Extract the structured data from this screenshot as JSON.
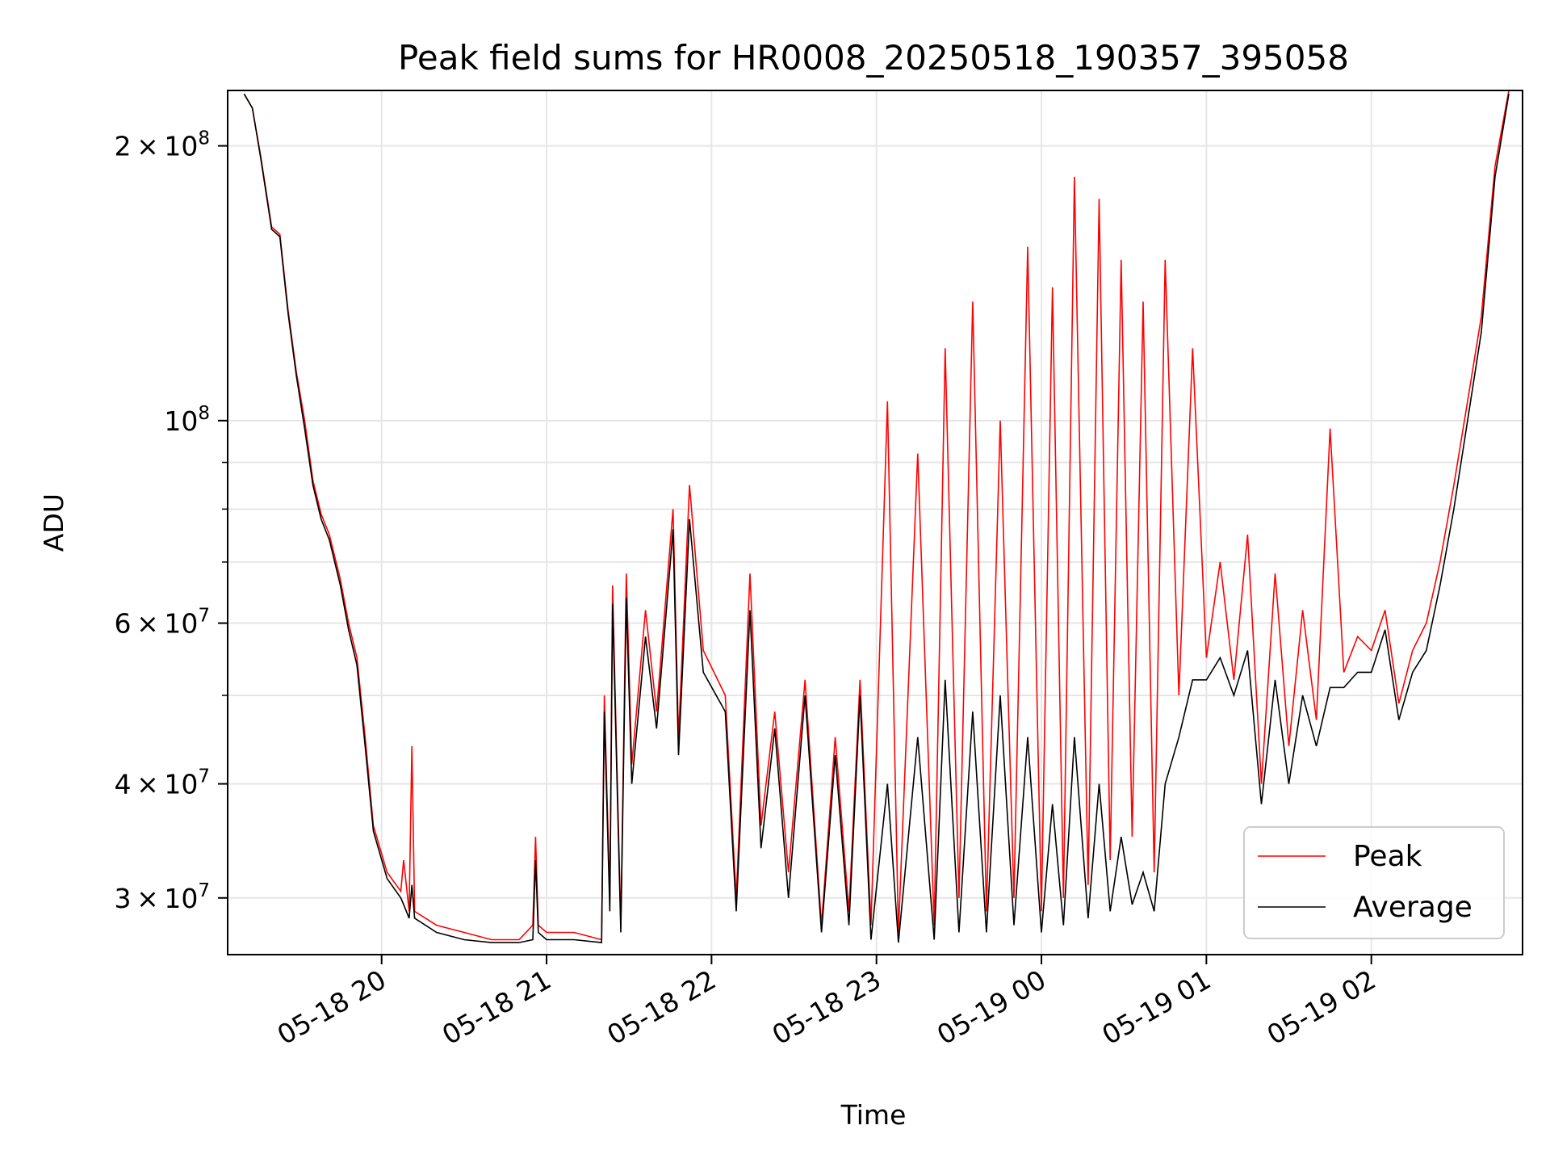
{
  "chart_data": {
    "type": "line",
    "title": "Peak field sums for HR0008_20250518_190357_395058",
    "xlabel": "Time",
    "ylabel": "ADU",
    "yscale": "log",
    "ylim": [
      26000000,
      230000000
    ],
    "xlim": [
      "2025-05-18 19:04",
      "2025-05-19 02:55"
    ],
    "grid": true,
    "legend_position": "lower-right",
    "x_ticks": [
      "05-18 20",
      "05-18 21",
      "05-18 22",
      "05-18 23",
      "05-19 00",
      "05-19 01",
      "05-19 02"
    ],
    "y_ticks": [
      {
        "value": 30000000,
        "mantissa": "3",
        "exp": "7"
      },
      {
        "value": 40000000,
        "mantissa": "4",
        "exp": "7"
      },
      {
        "value": 60000000,
        "mantissa": "6",
        "exp": "7"
      },
      {
        "value": 100000000,
        "mantissa": "",
        "exp": "8"
      },
      {
        "value": 200000000,
        "mantissa": "2",
        "exp": "8"
      }
    ],
    "series": [
      {
        "name": "Peak",
        "color": "#ff0000",
        "x": [
          "2025-05-18 19:10",
          "2025-05-18 19:13",
          "2025-05-18 19:16",
          "2025-05-18 19:20",
          "2025-05-18 19:23",
          "2025-05-18 19:26",
          "2025-05-18 19:29",
          "2025-05-18 19:32",
          "2025-05-18 19:35",
          "2025-05-18 19:38",
          "2025-05-18 19:41",
          "2025-05-18 19:45",
          "2025-05-18 19:48",
          "2025-05-18 19:51",
          "2025-05-18 19:54",
          "2025-05-18 19:57",
          "2025-05-18 20:02",
          "2025-05-18 20:07",
          "2025-05-18 20:08",
          "2025-05-18 20:10",
          "2025-05-18 20:11",
          "2025-05-18 20:12",
          "2025-05-18 20:20",
          "2025-05-18 20:30",
          "2025-05-18 20:40",
          "2025-05-18 20:50",
          "2025-05-18 20:55",
          "2025-05-18 20:56",
          "2025-05-18 20:57",
          "2025-05-18 21:00",
          "2025-05-18 21:10",
          "2025-05-18 21:20",
          "2025-05-18 21:21",
          "2025-05-18 21:23",
          "2025-05-18 21:24",
          "2025-05-18 21:27",
          "2025-05-18 21:29",
          "2025-05-18 21:31",
          "2025-05-18 21:36",
          "2025-05-18 21:40",
          "2025-05-18 21:46",
          "2025-05-18 21:48",
          "2025-05-18 21:52",
          "2025-05-18 21:57",
          "2025-05-18 22:05",
          "2025-05-18 22:09",
          "2025-05-18 22:14",
          "2025-05-18 22:18",
          "2025-05-18 22:23",
          "2025-05-18 22:28",
          "2025-05-18 22:34",
          "2025-05-18 22:40",
          "2025-05-18 22:45",
          "2025-05-18 22:50",
          "2025-05-18 22:54",
          "2025-05-18 22:58",
          "2025-05-18 23:04",
          "2025-05-18 23:08",
          "2025-05-18 23:15",
          "2025-05-18 23:21",
          "2025-05-18 23:25",
          "2025-05-18 23:30",
          "2025-05-18 23:35",
          "2025-05-18 23:40",
          "2025-05-18 23:45",
          "2025-05-18 23:50",
          "2025-05-18 23:55",
          "2025-05-19 00:00",
          "2025-05-19 00:04",
          "2025-05-19 00:08",
          "2025-05-19 00:12",
          "2025-05-19 00:17",
          "2025-05-19 00:21",
          "2025-05-19 00:25",
          "2025-05-19 00:29",
          "2025-05-19 00:33",
          "2025-05-19 00:37",
          "2025-05-19 00:41",
          "2025-05-19 00:45",
          "2025-05-19 00:50",
          "2025-05-19 00:55",
          "2025-05-19 01:00",
          "2025-05-19 01:05",
          "2025-05-19 01:10",
          "2025-05-19 01:15",
          "2025-05-19 01:20",
          "2025-05-19 01:25",
          "2025-05-19 01:30",
          "2025-05-19 01:35",
          "2025-05-19 01:40",
          "2025-05-19 01:45",
          "2025-05-19 01:50",
          "2025-05-19 01:55",
          "2025-05-19 02:00",
          "2025-05-19 02:05",
          "2025-05-19 02:10",
          "2025-05-19 02:15",
          "2025-05-19 02:20",
          "2025-05-19 02:25",
          "2025-05-19 02:30",
          "2025-05-19 02:35",
          "2025-05-19 02:40",
          "2025-05-19 02:45",
          "2025-05-19 02:50"
        ],
        "y": [
          228000000,
          220000000,
          195000000,
          163000000,
          160000000,
          132000000,
          113000000,
          100000000,
          86000000,
          79000000,
          75000000,
          67000000,
          60000000,
          55000000,
          45000000,
          36000000,
          32000000,
          30500000,
          33000000,
          29000000,
          44000000,
          29000000,
          28000000,
          27500000,
          27000000,
          27000000,
          28000000,
          35000000,
          28000000,
          27500000,
          27500000,
          27000000,
          50000000,
          30000000,
          66000000,
          28000000,
          68000000,
          42000000,
          62000000,
          48000000,
          80000000,
          45000000,
          85000000,
          56000000,
          50000000,
          30000000,
          68000000,
          36000000,
          48000000,
          32000000,
          52000000,
          28000000,
          45000000,
          29000000,
          52000000,
          28000000,
          105000000,
          27500000,
          92000000,
          28000000,
          120000000,
          30000000,
          135000000,
          29000000,
          100000000,
          30000000,
          155000000,
          29000000,
          140000000,
          30000000,
          185000000,
          31000000,
          175000000,
          33000000,
          150000000,
          35000000,
          135000000,
          32000000,
          150000000,
          50000000,
          120000000,
          55000000,
          70000000,
          52000000,
          75000000,
          40000000,
          68000000,
          44000000,
          62000000,
          47000000,
          98000000,
          53000000,
          58000000,
          56000000,
          62000000,
          49000000,
          56000000,
          60000000,
          70000000,
          85000000,
          105000000,
          130000000,
          190000000,
          230000000
        ]
      },
      {
        "name": "Average",
        "color": "#000000",
        "x": [
          "2025-05-18 19:10",
          "2025-05-18 19:13",
          "2025-05-18 19:16",
          "2025-05-18 19:20",
          "2025-05-18 19:23",
          "2025-05-18 19:26",
          "2025-05-18 19:29",
          "2025-05-18 19:32",
          "2025-05-18 19:35",
          "2025-05-18 19:38",
          "2025-05-18 19:41",
          "2025-05-18 19:45",
          "2025-05-18 19:48",
          "2025-05-18 19:51",
          "2025-05-18 19:54",
          "2025-05-18 19:57",
          "2025-05-18 20:02",
          "2025-05-18 20:07",
          "2025-05-18 20:08",
          "2025-05-18 20:10",
          "2025-05-18 20:11",
          "2025-05-18 20:12",
          "2025-05-18 20:20",
          "2025-05-18 20:30",
          "2025-05-18 20:40",
          "2025-05-18 20:50",
          "2025-05-18 20:55",
          "2025-05-18 20:56",
          "2025-05-18 20:57",
          "2025-05-18 21:00",
          "2025-05-18 21:10",
          "2025-05-18 21:20",
          "2025-05-18 21:21",
          "2025-05-18 21:23",
          "2025-05-18 21:24",
          "2025-05-18 21:27",
          "2025-05-18 21:29",
          "2025-05-18 21:31",
          "2025-05-18 21:36",
          "2025-05-18 21:40",
          "2025-05-18 21:46",
          "2025-05-18 21:48",
          "2025-05-18 21:52",
          "2025-05-18 21:57",
          "2025-05-18 22:05",
          "2025-05-18 22:09",
          "2025-05-18 22:14",
          "2025-05-18 22:18",
          "2025-05-18 22:23",
          "2025-05-18 22:28",
          "2025-05-18 22:34",
          "2025-05-18 22:40",
          "2025-05-18 22:45",
          "2025-05-18 22:50",
          "2025-05-18 22:54",
          "2025-05-18 22:58",
          "2025-05-18 23:04",
          "2025-05-18 23:08",
          "2025-05-18 23:15",
          "2025-05-18 23:21",
          "2025-05-18 23:25",
          "2025-05-18 23:30",
          "2025-05-18 23:35",
          "2025-05-18 23:40",
          "2025-05-18 23:45",
          "2025-05-18 23:50",
          "2025-05-18 23:55",
          "2025-05-19 00:00",
          "2025-05-19 00:04",
          "2025-05-19 00:08",
          "2025-05-19 00:12",
          "2025-05-19 00:17",
          "2025-05-19 00:21",
          "2025-05-19 00:25",
          "2025-05-19 00:29",
          "2025-05-19 00:33",
          "2025-05-19 00:37",
          "2025-05-19 00:41",
          "2025-05-19 00:45",
          "2025-05-19 00:50",
          "2025-05-19 00:55",
          "2025-05-19 01:00",
          "2025-05-19 01:05",
          "2025-05-19 01:10",
          "2025-05-19 01:15",
          "2025-05-19 01:20",
          "2025-05-19 01:25",
          "2025-05-19 01:30",
          "2025-05-19 01:35",
          "2025-05-19 01:40",
          "2025-05-19 01:45",
          "2025-05-19 01:50",
          "2025-05-19 01:55",
          "2025-05-19 02:00",
          "2025-05-19 02:05",
          "2025-05-19 02:10",
          "2025-05-19 02:15",
          "2025-05-19 02:20",
          "2025-05-19 02:25",
          "2025-05-19 02:30",
          "2025-05-19 02:35",
          "2025-05-19 02:40",
          "2025-05-19 02:45",
          "2025-05-19 02:50"
        ],
        "y": [
          228000000,
          220000000,
          194000000,
          162000000,
          159000000,
          131000000,
          112000000,
          98000000,
          85000000,
          78000000,
          74000000,
          66000000,
          59000000,
          54000000,
          44000000,
          35500000,
          31500000,
          30000000,
          29500000,
          28500000,
          31000000,
          28500000,
          27500000,
          27000000,
          26800000,
          26800000,
          27000000,
          33000000,
          27500000,
          27000000,
          27000000,
          26800000,
          48000000,
          29000000,
          63000000,
          27500000,
          64000000,
          40000000,
          58000000,
          46000000,
          76000000,
          43000000,
          78000000,
          53000000,
          48000000,
          29000000,
          62000000,
          34000000,
          46000000,
          30000000,
          50000000,
          27500000,
          43000000,
          28000000,
          50000000,
          27000000,
          40000000,
          26800000,
          45000000,
          27000000,
          52000000,
          27500000,
          48000000,
          27500000,
          50000000,
          28000000,
          45000000,
          27500000,
          38000000,
          28000000,
          45000000,
          28500000,
          40000000,
          29000000,
          35000000,
          29500000,
          32000000,
          29000000,
          40000000,
          45000000,
          52000000,
          52000000,
          55000000,
          50000000,
          56000000,
          38000000,
          52000000,
          40000000,
          50000000,
          44000000,
          51000000,
          51000000,
          53000000,
          53000000,
          59000000,
          47000000,
          53000000,
          56000000,
          66000000,
          80000000,
          100000000,
          125000000,
          185000000,
          228000000
        ]
      }
    ]
  }
}
